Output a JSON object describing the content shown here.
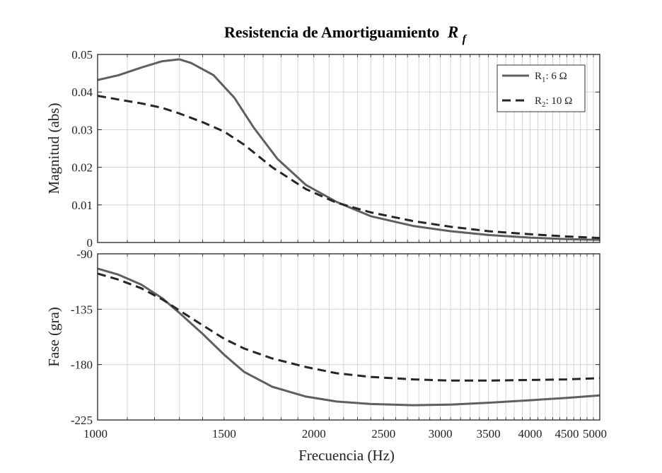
{
  "chart_data": {
    "type": "line",
    "title": "Resistencia de Amortiguamiento",
    "title_symbol": "R",
    "title_subscript": "f",
    "xlabel": "Frecuencia  (Hz)",
    "xscale": "log",
    "xlim": [
      1000,
      5000
    ],
    "xticks": [
      1000,
      1500,
      2000,
      2500,
      3000,
      3500,
      4000,
      4500,
      5000
    ],
    "colors": {
      "series1": "#5f5f5f",
      "series2": "#262626",
      "grid": "#d0d0d0"
    },
    "series_legend": [
      {
        "prefix": "R",
        "subscript": "1",
        "suffix": ": 6 Ω",
        "style": "solid"
      },
      {
        "prefix": "R",
        "subscript": "2",
        "suffix": ": 10 Ω",
        "style": "dashed"
      }
    ],
    "panels": [
      {
        "ylabel": "Magnitud (abs)",
        "ylim": [
          0,
          0.05
        ],
        "yticks": [
          0,
          0.01,
          0.02,
          0.03,
          0.04,
          0.05
        ],
        "ytick_labels": [
          "0",
          "0.01",
          "0.02",
          "0.03",
          "0.04",
          "0.05"
        ],
        "legend_position": "top-right",
        "series": [
          {
            "name": "R1: 6 Ω",
            "x": [
              1000,
              1070,
              1150,
              1230,
              1300,
              1350,
              1450,
              1550,
              1650,
              1780,
              1950,
              2150,
              2400,
              2750,
              3100,
              3500,
              4000,
              4500,
              5000
            ],
            "y": [
              0.0432,
              0.0445,
              0.0465,
              0.0482,
              0.0487,
              0.0477,
              0.0445,
              0.0385,
              0.0305,
              0.0222,
              0.0153,
              0.0108,
              0.007,
              0.0044,
              0.003,
              0.002,
              0.0013,
              0.0009,
              0.0007
            ]
          },
          {
            "name": "R2: 10 Ω",
            "x": [
              1000,
              1070,
              1150,
              1230,
              1300,
              1400,
              1500,
              1600,
              1750,
              1950,
              2150,
              2400,
              2750,
              3100,
              3500,
              4000,
              4500,
              5000
            ],
            "y": [
              0.039,
              0.038,
              0.037,
              0.0358,
              0.0343,
              0.032,
              0.0295,
              0.026,
              0.02,
              0.0142,
              0.0106,
              0.008,
              0.0057,
              0.0042,
              0.003,
              0.0022,
              0.0016,
              0.0012
            ]
          }
        ]
      },
      {
        "ylabel": "Fase (gra)",
        "ylim": [
          -225,
          -90
        ],
        "yticks": [
          -225,
          -180,
          -135,
          -90
        ],
        "ytick_labels": [
          "-225",
          "-180",
          "-135",
          "-90"
        ],
        "series": [
          {
            "name": "R1: 6 Ω",
            "x": [
              1000,
              1070,
              1150,
              1230,
              1300,
              1400,
              1500,
              1600,
              1750,
              1950,
              2150,
              2400,
              2750,
              3100,
              3500,
              4000,
              4500,
              5000
            ],
            "y": [
              -102,
              -107,
              -115,
              -126,
              -138,
              -155,
              -172,
              -186,
              -198,
              -206,
              -210,
              -212,
              -213,
              -212.5,
              -211,
              -209,
              -207,
              -205
            ]
          },
          {
            "name": "R2: 10 Ω",
            "x": [
              1000,
              1070,
              1150,
              1230,
              1300,
              1400,
              1500,
              1600,
              1750,
              1950,
              2150,
              2400,
              2750,
              3100,
              3500,
              4000,
              4500,
              5000
            ],
            "y": [
              -106,
              -111,
              -118,
              -127,
              -136,
              -148,
              -159,
              -167,
              -175,
              -182,
              -187,
              -190,
              -192,
              -193,
              -193,
              -192.5,
              -192,
              -191
            ]
          }
        ]
      }
    ]
  }
}
